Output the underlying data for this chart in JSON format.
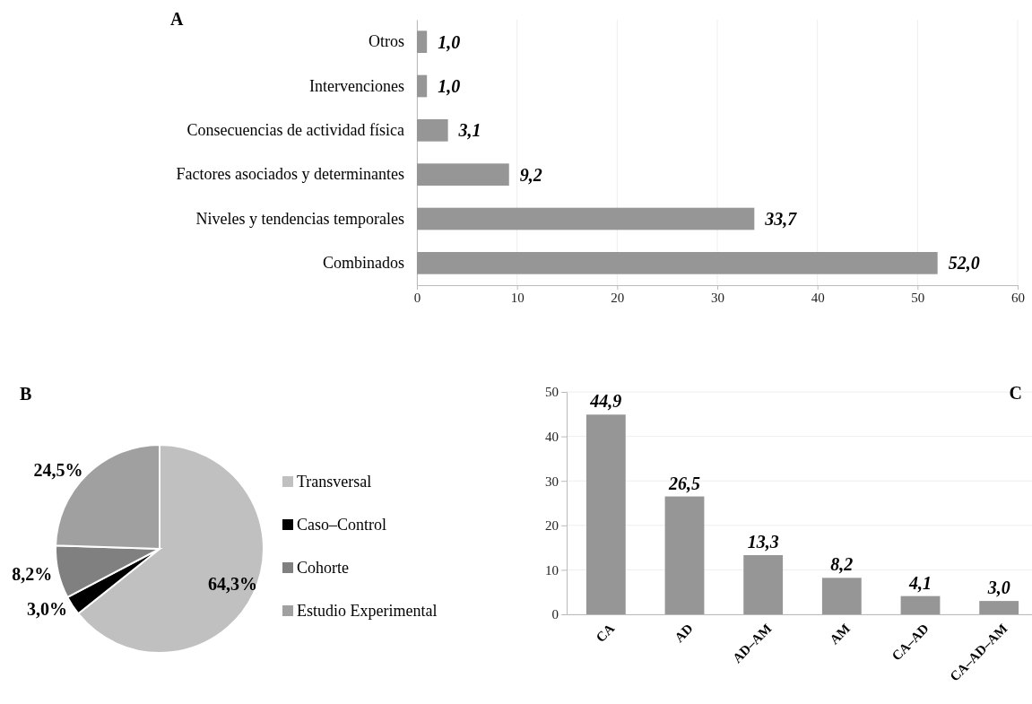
{
  "chart_data": [
    {
      "type": "bar",
      "title": "A",
      "orientation": "horizontal",
      "categories": [
        "Otros",
        "Intervenciones",
        "Consecuencias de actividad física",
        "Factores asociados y determinantes",
        "Niveles y tendencias temporales",
        "Combinados"
      ],
      "values": [
        1.0,
        1.0,
        3.1,
        9.2,
        33.7,
        52.0
      ],
      "value_labels": [
        "1,0",
        "1,0",
        "3,1",
        "9,2",
        "33,7",
        "52,0"
      ],
      "color": "#969696",
      "xlim": [
        0,
        60
      ],
      "xticks": [
        0,
        10,
        20,
        30,
        40,
        50,
        60
      ],
      "grid": "x"
    },
    {
      "type": "pie",
      "title": "B",
      "categories": [
        "Transversal",
        "Caso–Control",
        "Cohorte",
        "Estudio Experimental"
      ],
      "values": [
        64.3,
        3.0,
        8.2,
        24.5
      ],
      "value_labels": [
        "64,3%",
        "3,0%",
        "8,2%",
        "24,5%"
      ],
      "colors": [
        "#c0c0c0",
        "#000000",
        "#808080",
        "#a0a0a0"
      ],
      "legend": "right"
    },
    {
      "type": "bar",
      "title": "C",
      "categories": [
        "CA",
        "AD",
        "AD–AM",
        "AM",
        "CA–AD",
        "CA–AD–AM"
      ],
      "values": [
        44.9,
        26.5,
        13.3,
        8.2,
        4.1,
        3.0
      ],
      "value_labels": [
        "44,9",
        "26,5",
        "13,3",
        "8,2",
        "4,1",
        "3,0"
      ],
      "color": "#969696",
      "ylim": [
        0,
        50
      ],
      "yticks": [
        0,
        10,
        20,
        30,
        40,
        50
      ],
      "grid": "y"
    }
  ]
}
